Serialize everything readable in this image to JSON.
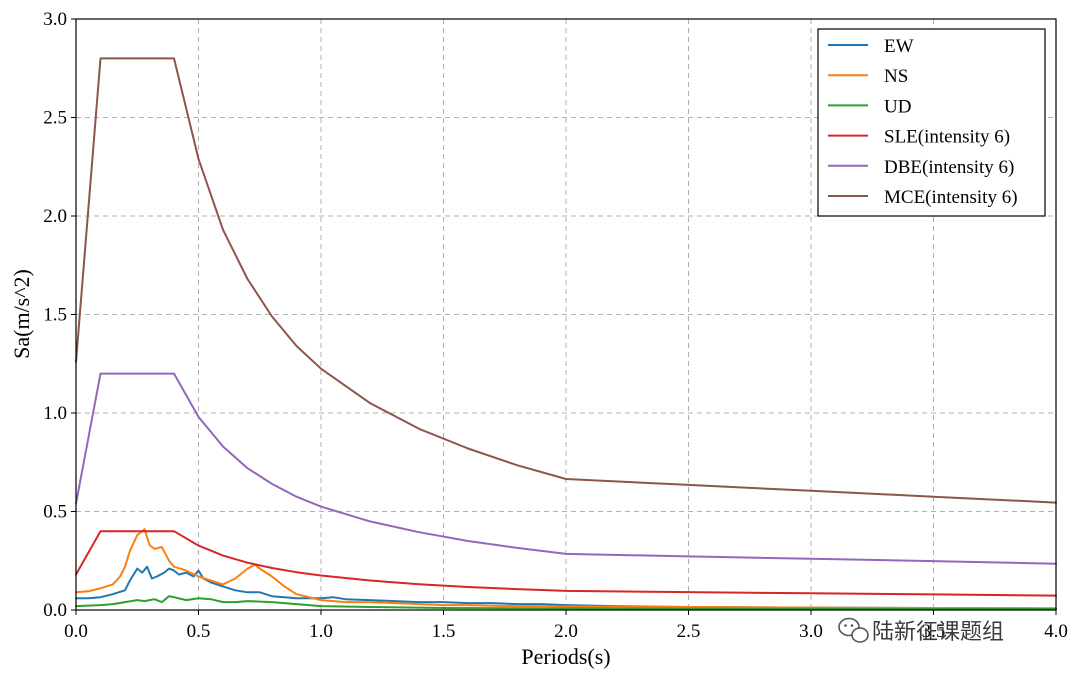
{
  "chart_data": {
    "type": "line",
    "title": "",
    "xlabel": "Periods(s)",
    "ylabel": "Sa(m/s^2)",
    "xlim": [
      0,
      4
    ],
    "ylim": [
      0,
      3
    ],
    "xticks": [
      "0.0",
      "0.5",
      "1.0",
      "1.5",
      "2.0",
      "2.5",
      "3.0",
      "3.5",
      "4.0"
    ],
    "yticks": [
      "0.0",
      "0.5",
      "1.0",
      "1.5",
      "2.0",
      "2.5",
      "3.0"
    ],
    "grid": true,
    "legend_position": "top-right",
    "series": [
      {
        "name": "EW",
        "color": "#1f77b4",
        "x": [
          0,
          0.05,
          0.1,
          0.15,
          0.2,
          0.22,
          0.25,
          0.27,
          0.29,
          0.31,
          0.33,
          0.36,
          0.38,
          0.4,
          0.42,
          0.45,
          0.48,
          0.5,
          0.52,
          0.55,
          0.6,
          0.65,
          0.7,
          0.75,
          0.8,
          0.9,
          1.0,
          1.05,
          1.1,
          1.2,
          1.3,
          1.4,
          1.5,
          1.6,
          1.7,
          1.8,
          1.9,
          2.0,
          2.2,
          2.5,
          3.0,
          3.5,
          4.0
        ],
        "y": [
          0.06,
          0.06,
          0.065,
          0.08,
          0.1,
          0.15,
          0.21,
          0.19,
          0.22,
          0.16,
          0.17,
          0.19,
          0.21,
          0.2,
          0.18,
          0.19,
          0.17,
          0.2,
          0.16,
          0.14,
          0.12,
          0.1,
          0.09,
          0.09,
          0.07,
          0.06,
          0.06,
          0.065,
          0.055,
          0.05,
          0.045,
          0.04,
          0.04,
          0.035,
          0.035,
          0.03,
          0.03,
          0.025,
          0.02,
          0.015,
          0.012,
          0.01,
          0.008
        ]
      },
      {
        "name": "NS",
        "color": "#ff7f0e",
        "x": [
          0,
          0.05,
          0.1,
          0.15,
          0.18,
          0.2,
          0.22,
          0.25,
          0.28,
          0.3,
          0.32,
          0.35,
          0.38,
          0.4,
          0.45,
          0.5,
          0.55,
          0.6,
          0.65,
          0.7,
          0.73,
          0.75,
          0.8,
          0.85,
          0.9,
          1.0,
          1.1,
          1.2,
          1.3,
          1.4,
          1.5,
          1.6,
          1.7,
          1.8,
          1.9,
          2.0,
          2.2,
          2.5,
          3.0,
          3.5,
          4.0
        ],
        "y": [
          0.09,
          0.095,
          0.11,
          0.13,
          0.17,
          0.22,
          0.3,
          0.38,
          0.41,
          0.33,
          0.31,
          0.32,
          0.25,
          0.22,
          0.2,
          0.17,
          0.15,
          0.13,
          0.16,
          0.21,
          0.23,
          0.21,
          0.17,
          0.12,
          0.08,
          0.05,
          0.04,
          0.04,
          0.035,
          0.03,
          0.025,
          0.025,
          0.022,
          0.02,
          0.02,
          0.018,
          0.017,
          0.015,
          0.012,
          0.01,
          0.008
        ]
      },
      {
        "name": "UD",
        "color": "#2ca02c",
        "x": [
          0,
          0.1,
          0.15,
          0.2,
          0.25,
          0.28,
          0.32,
          0.35,
          0.38,
          0.4,
          0.45,
          0.5,
          0.55,
          0.6,
          0.65,
          0.7,
          0.8,
          0.9,
          1.0,
          1.2,
          1.5,
          2.0,
          2.5,
          3.0,
          3.5,
          4.0
        ],
        "y": [
          0.02,
          0.025,
          0.03,
          0.04,
          0.05,
          0.045,
          0.055,
          0.04,
          0.07,
          0.065,
          0.05,
          0.06,
          0.055,
          0.04,
          0.04,
          0.045,
          0.04,
          0.03,
          0.02,
          0.015,
          0.01,
          0.008,
          0.007,
          0.006,
          0.005,
          0.005
        ]
      },
      {
        "name": "SLE(intensity 6)",
        "color": "#d62728",
        "x": [
          0,
          0.1,
          0.4,
          0.5,
          0.6,
          0.7,
          0.8,
          0.9,
          1.0,
          1.2,
          1.4,
          1.6,
          1.8,
          2.0,
          2.5,
          3.0,
          3.5,
          4.0
        ],
        "y": [
          0.18,
          0.4,
          0.4,
          0.327,
          0.276,
          0.24,
          0.213,
          0.192,
          0.175,
          0.15,
          0.131,
          0.117,
          0.106,
          0.097,
          0.091,
          0.085,
          0.079,
          0.073
        ]
      },
      {
        "name": "DBE(intensity 6)",
        "color": "#9467bd",
        "x": [
          0,
          0.1,
          0.4,
          0.5,
          0.6,
          0.7,
          0.8,
          0.9,
          1.0,
          1.2,
          1.4,
          1.6,
          1.8,
          2.0,
          2.5,
          3.0,
          3.5,
          4.0
        ],
        "y": [
          0.54,
          1.2,
          1.2,
          0.98,
          0.83,
          0.72,
          0.64,
          0.575,
          0.525,
          0.45,
          0.395,
          0.35,
          0.315,
          0.285,
          0.272,
          0.26,
          0.248,
          0.235
        ]
      },
      {
        "name": "MCE(intensity 6)",
        "color": "#8c564b",
        "x": [
          0,
          0.1,
          0.4,
          0.5,
          0.6,
          0.7,
          0.8,
          0.9,
          1.0,
          1.2,
          1.4,
          1.6,
          1.8,
          2.0,
          2.5,
          3.0,
          3.5,
          4.0
        ],
        "y": [
          1.26,
          2.8,
          2.8,
          2.29,
          1.93,
          1.68,
          1.49,
          1.34,
          1.225,
          1.05,
          0.92,
          0.82,
          0.735,
          0.665,
          0.635,
          0.605,
          0.575,
          0.545
        ]
      }
    ]
  },
  "watermark": {
    "icon": "wechat-icon",
    "text": "陆新征课题组"
  }
}
